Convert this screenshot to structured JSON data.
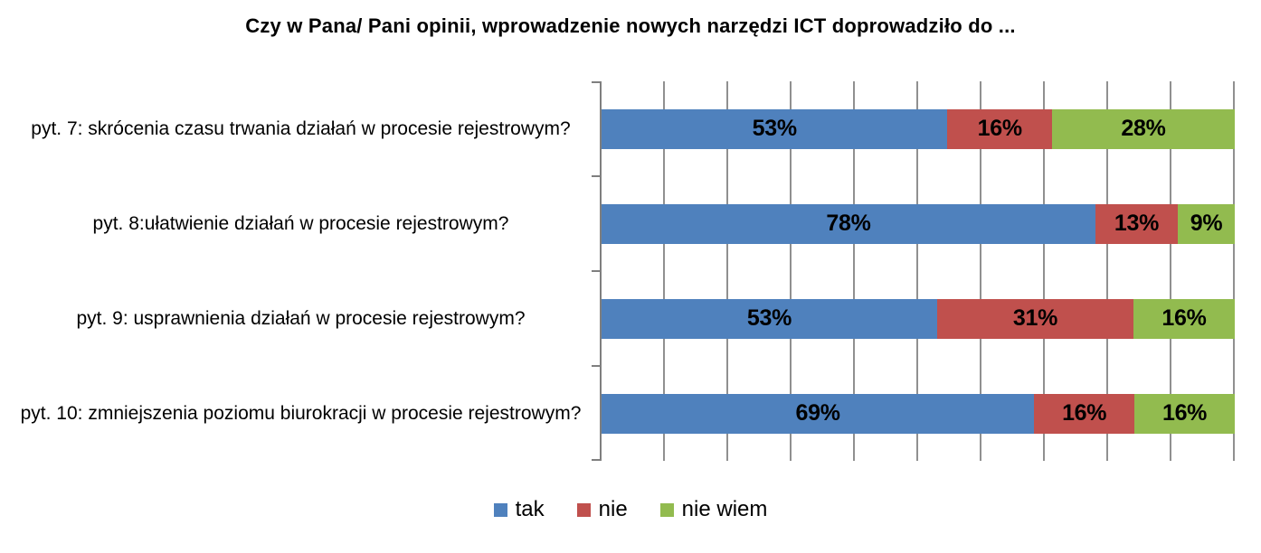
{
  "title": "Czy w Pana/ Pani opinii, wprowadzenie nowych narzędzi ICT doprowadziło do ...",
  "chart_data": {
    "type": "bar",
    "orientation": "horizontal",
    "stacked": true,
    "normalized_to_100pct": true,
    "title": "Czy w Pana/ Pani opinii, wprowadzenie nowych narzędzi ICT doprowadziło do ...",
    "categories": [
      "pyt. 7: skrócenia czasu trwania działań w procesie rejestrowym?",
      "pyt. 8:ułatwienie działań w procesie rejestrowym?",
      "pyt. 9: usprawnienia działań w procesie rejestrowym?",
      "pyt. 10: zmniejszenia poziomu biurokracji w procesie rejestrowym?"
    ],
    "series": [
      {
        "name": "tak",
        "color": "#4F81BD",
        "values": [
          53,
          78,
          53,
          69
        ]
      },
      {
        "name": "nie",
        "color": "#C0504D",
        "values": [
          16,
          13,
          31,
          16
        ]
      },
      {
        "name": "nie wiem",
        "color": "#92BB4F",
        "values": [
          28,
          9,
          16,
          16
        ]
      }
    ],
    "data_label_suffix": "%",
    "xlim": [
      0,
      100
    ],
    "gridline_interval_pct": 10,
    "grid": true,
    "legend_position": "bottom",
    "legend_labels": [
      "tak",
      "nie",
      "nie wiem"
    ]
  },
  "colors": {
    "background": "#FFFFFF",
    "gridline": "#909090",
    "axis": "#7F7F7F",
    "data_label": "#000000",
    "text": "#000000"
  }
}
